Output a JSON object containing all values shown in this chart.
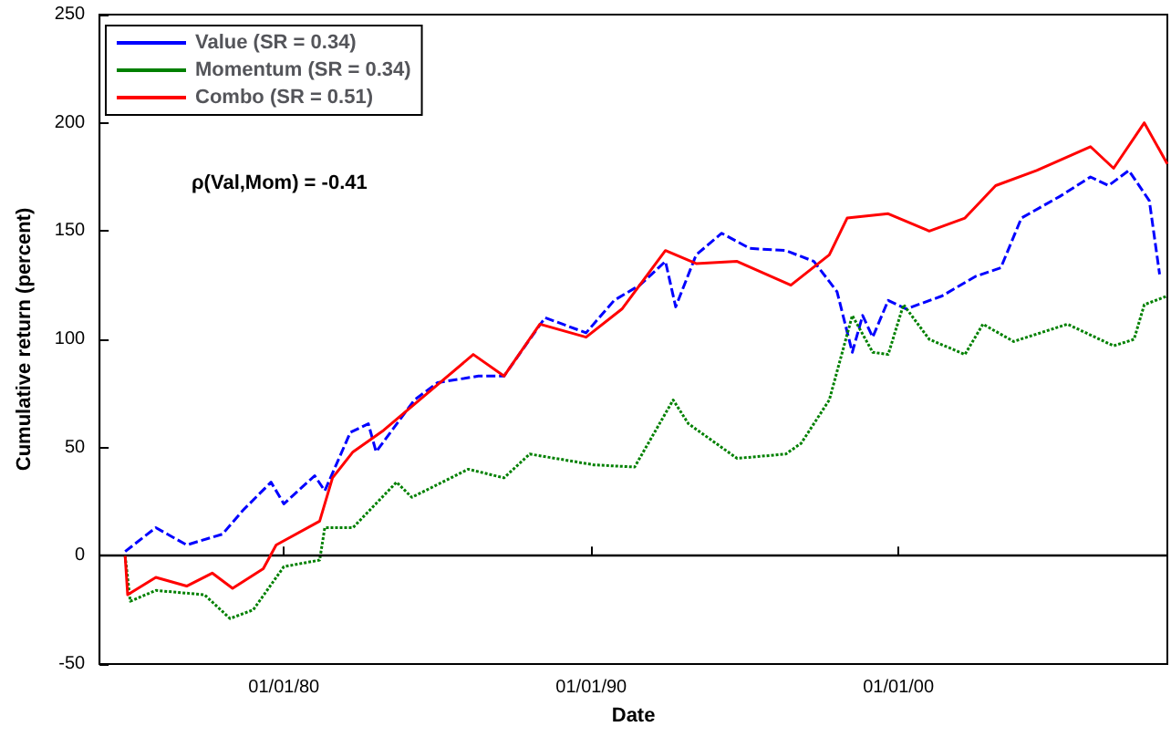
{
  "chart_data": {
    "type": "line",
    "xlabel": "Date",
    "ylabel": "Cumulative return (percent)",
    "annotations": [
      "ρ(Val,Mom) = -0.41"
    ],
    "xlim": [
      "1974-01",
      "2008-10"
    ],
    "xticks": [
      {
        "value": "1980-01-01",
        "label": "01/01/80"
      },
      {
        "value": "1990-01-01",
        "label": "01/01/90"
      },
      {
        "value": "2000-01-01",
        "label": "01/01/00"
      }
    ],
    "ylim": [
      -50,
      250
    ],
    "yticks": [
      -50,
      0,
      50,
      100,
      150,
      200,
      250
    ],
    "grid": false,
    "legend": "top left",
    "marker": "none",
    "ref_lines": [
      {
        "axis": "y",
        "value": 0,
        "color": "#000000"
      }
    ],
    "series": [
      {
        "name": "Value (SR = 0.34)",
        "color": "#0000ff",
        "line_style": "dashed",
        "x": [
          "1974-11",
          "1975-11",
          "1976-11",
          "1978-01",
          "1978-09",
          "1979-08",
          "1980-01",
          "1981-01",
          "1981-05",
          "1982-03",
          "1982-10",
          "1983-01",
          "1984-04",
          "1985-01",
          "1986-05",
          "1987-03",
          "1988-07",
          "1989-11",
          "1990-10",
          "1991-08",
          "1992-06",
          "1992-10",
          "1993-06",
          "1994-04",
          "1995-03",
          "1996-05",
          "1997-04",
          "1998-01",
          "1998-07",
          "1998-11",
          "1999-03",
          "1999-09",
          "2000-04",
          "2001-06",
          "2002-07",
          "2003-05",
          "2004-01",
          "2005-04",
          "2006-04",
          "2006-11",
          "2007-07",
          "2008-03",
          "2008-07"
        ],
        "values": [
          2,
          13,
          5,
          10,
          21,
          34,
          24,
          37,
          30,
          57,
          61,
          48,
          72,
          80,
          83,
          83,
          110,
          103,
          118,
          125,
          136,
          115,
          139,
          149,
          142,
          141,
          136,
          122,
          94,
          111,
          101,
          118,
          114,
          120,
          129,
          133,
          156,
          166,
          175,
          171,
          178,
          164,
          130
        ]
      },
      {
        "name": "Momentum (SR = 0.34)",
        "color": "#008000",
        "line_style": "dotted",
        "x": [
          "1974-11",
          "1975-01",
          "1975-11",
          "1977-06",
          "1978-04",
          "1979-01",
          "1980-01",
          "1981-03",
          "1981-05",
          "1982-04",
          "1983-09",
          "1984-03",
          "1986-01",
          "1987-03",
          "1988-01",
          "1990-02",
          "1991-06",
          "1992-09",
          "1993-03",
          "1994-10",
          "1996-05",
          "1996-11",
          "1997-10",
          "1998-07",
          "1999-03",
          "1999-09",
          "2000-03",
          "2001-01",
          "2002-03",
          "2002-10",
          "2003-10",
          "2005-07",
          "2007-01",
          "2007-09",
          "2008-01",
          "2008-10"
        ],
        "values": [
          0,
          -21,
          -16,
          -18,
          -29,
          -25,
          -5,
          -2,
          13,
          13,
          34,
          27,
          40,
          36,
          47,
          42,
          41,
          72,
          61,
          45,
          47,
          52,
          72,
          111,
          94,
          93,
          116,
          100,
          93,
          107,
          99,
          107,
          97,
          100,
          116,
          120
        ]
      },
      {
        "name": "Combo (SR = 0.51)",
        "color": "#ff0000",
        "line_style": "solid",
        "x": [
          "1974-11",
          "1974-12",
          "1975-11",
          "1976-11",
          "1977-09",
          "1978-05",
          "1979-05",
          "1979-10",
          "1981-03",
          "1981-08",
          "1982-04",
          "1983-04",
          "1984-06",
          "1986-03",
          "1987-03",
          "1988-05",
          "1989-11",
          "1991-01",
          "1992-06",
          "1993-06",
          "1994-10",
          "1996-07",
          "1997-10",
          "1998-05",
          "1999-09",
          "2001-01",
          "2002-03",
          "2003-03",
          "2004-07",
          "2006-04",
          "2007-01",
          "2008-01",
          "2008-10"
        ],
        "values": [
          0,
          -18,
          -10,
          -14,
          -8,
          -15,
          -6,
          5,
          16,
          36,
          48,
          58,
          72,
          93,
          83,
          107,
          101,
          114,
          141,
          135,
          136,
          125,
          139,
          156,
          158,
          150,
          156,
          171,
          178,
          189,
          179,
          200,
          181
        ]
      }
    ]
  }
}
